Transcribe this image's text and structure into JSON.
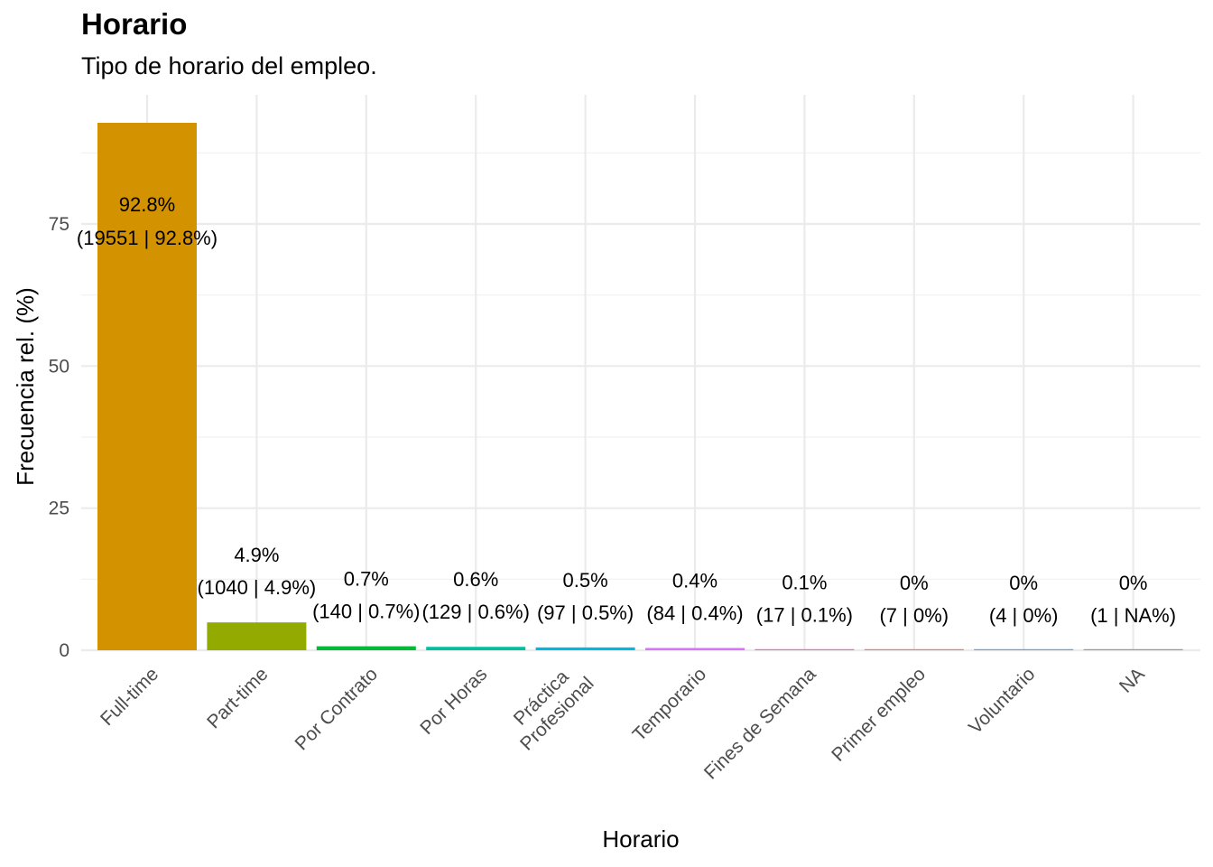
{
  "chart_data": {
    "type": "bar",
    "title": "Horario",
    "subtitle": "Tipo de horario del empleo.",
    "xlabel": "Horario",
    "ylabel": "Frecuencia rel. (%)",
    "ylim": [
      0,
      95
    ],
    "yticks": [
      0,
      25,
      50,
      75
    ],
    "grid": true,
    "categories": [
      {
        "name": "Full-time",
        "lines": [
          "Full-time"
        ],
        "value": 92.8,
        "pct_label": "92.8%",
        "count_label": "(19551 | 92.8%)",
        "color": "#D39200"
      },
      {
        "name": "Part-time",
        "lines": [
          "Part-time"
        ],
        "value": 4.9,
        "pct_label": "4.9%",
        "count_label": "(1040 | 4.9%)",
        "color": "#93AA00"
      },
      {
        "name": "Por Contrato",
        "lines": [
          "Por Contrato"
        ],
        "value": 0.7,
        "pct_label": "0.7%",
        "count_label": "(140 | 0.7%)",
        "color": "#00BA38"
      },
      {
        "name": "Por Horas",
        "lines": [
          "Por Horas"
        ],
        "value": 0.6,
        "pct_label": "0.6%",
        "count_label": "(129 | 0.6%)",
        "color": "#00C19F"
      },
      {
        "name": "Práctica Profesional",
        "lines": [
          "Práctica",
          "Profesional"
        ],
        "value": 0.5,
        "pct_label": "0.5%",
        "count_label": "(97 | 0.5%)",
        "color": "#00B9E3"
      },
      {
        "name": "Temporario",
        "lines": [
          "Temporario"
        ],
        "value": 0.4,
        "pct_label": "0.4%",
        "count_label": "(84 | 0.4%)",
        "color": "#DB72FB"
      },
      {
        "name": "Fines de Semana",
        "lines": [
          "Fines de Semana"
        ],
        "value": 0.1,
        "pct_label": "0.1%",
        "count_label": "(17 | 0.1%)",
        "color": "#FF61C3"
      },
      {
        "name": "Primer empleo",
        "lines": [
          "Primer empleo"
        ],
        "value": 0.03,
        "pct_label": "0%",
        "count_label": "(7 | 0%)",
        "color": "#F8766D"
      },
      {
        "name": "Voluntario",
        "lines": [
          "Voluntario"
        ],
        "value": 0.02,
        "pct_label": "0%",
        "count_label": "(4 | 0%)",
        "color": "#619CFF"
      },
      {
        "name": "NA",
        "lines": [
          "NA"
        ],
        "value": 0.005,
        "pct_label": "0%",
        "count_label": "(1 | NA%)",
        "color": "#999999"
      }
    ]
  }
}
